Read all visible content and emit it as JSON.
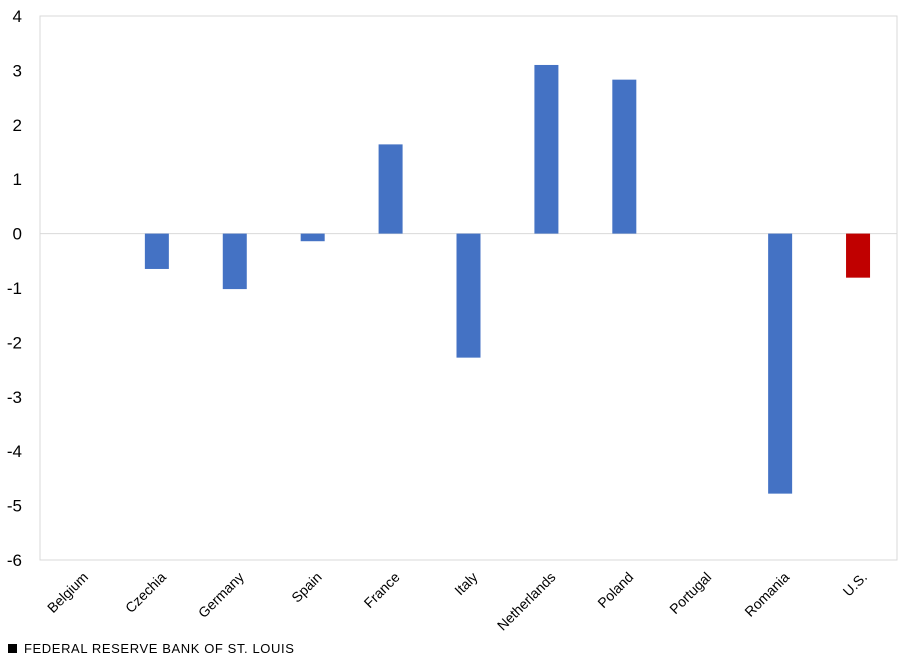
{
  "chart_data": {
    "type": "bar",
    "categories": [
      "Belgium",
      "Czechia",
      "Germany",
      "Spain",
      "France",
      "Italy",
      "Netherlands",
      "Poland",
      "Portugal",
      "Romania",
      "U.S."
    ],
    "values": [
      0,
      -0.65,
      -1.02,
      -0.14,
      1.64,
      -2.28,
      3.1,
      2.83,
      0,
      -4.78,
      -0.81
    ],
    "colors": [
      "#4472c4",
      "#4472c4",
      "#4472c4",
      "#4472c4",
      "#4472c4",
      "#4472c4",
      "#4472c4",
      "#4472c4",
      "#4472c4",
      "#4472c4",
      "#c00000"
    ],
    "ylim": [
      -6,
      4
    ],
    "yticks": [
      4,
      3,
      2,
      1,
      0,
      -1,
      -2,
      -3,
      -4,
      -5,
      -6
    ],
    "title": "",
    "xlabel": "",
    "ylabel": "",
    "grid": false,
    "zero_line": true
  },
  "footer": {
    "source": "FEDERAL RESERVE BANK OF ST. LOUIS"
  }
}
